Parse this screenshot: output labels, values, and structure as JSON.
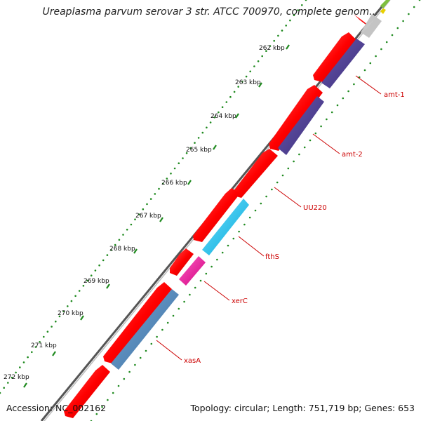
{
  "header": {
    "title": "Ureaplasma parvum serovar 3 str. ATCC 700970, complete genom..."
  },
  "footer": {
    "accession": "Accession: NC_002162",
    "summary": "Topology: circular; Length: 751,719 bp; Genes: 653"
  },
  "ticks": [
    "262 kbp",
    "263 kbp",
    "264 kbp",
    "265 kbp",
    "266 kbp",
    "267 kbp",
    "268 kbp",
    "269 kbp",
    "270 kbp",
    "271 kbp",
    "272 kbp"
  ],
  "genes": [
    {
      "label": "amt-1",
      "color": "#4b3b8c"
    },
    {
      "label": "amt-2",
      "color": "#4b3b8c"
    },
    {
      "label": "UU220",
      "color": "#ff0000"
    },
    {
      "label": "fthS",
      "color": "#11c2f2"
    },
    {
      "label": "xerC",
      "color": "#ff1aa0"
    },
    {
      "label": "xasA",
      "color": "#4d86be"
    }
  ],
  "colors": {
    "forward_gene": "#ff0000",
    "tick_green": "#1f8a1f",
    "backbone": "#8c8c8c",
    "label_red": "#cc0000",
    "misc_grey": "#c4c4c4"
  }
}
